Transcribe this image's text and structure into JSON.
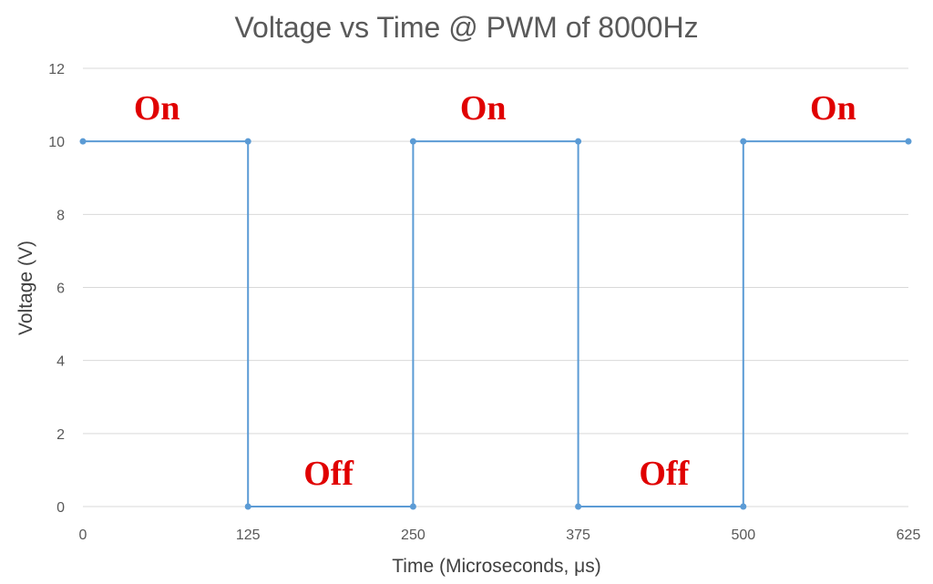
{
  "chart_data": {
    "type": "line",
    "title": "Voltage vs Time @ PWM of 8000Hz",
    "xlabel": "Time (Microseconds, μs)",
    "ylabel": "Voltage (V)",
    "xlim": [
      0,
      625
    ],
    "ylim": [
      0,
      12
    ],
    "x_ticks": [
      "0",
      "125",
      "250",
      "375",
      "500",
      "625"
    ],
    "y_ticks": [
      "0",
      "2",
      "4",
      "6",
      "8",
      "10",
      "12"
    ],
    "grid": true,
    "legend": "none",
    "color": "#5b9bd5",
    "series": [
      {
        "points": [
          [
            0,
            10
          ],
          [
            125,
            10
          ],
          [
            125,
            0
          ],
          [
            250,
            0
          ],
          [
            250,
            10
          ],
          [
            375,
            10
          ],
          [
            375,
            0
          ],
          [
            500,
            0
          ],
          [
            500,
            10
          ],
          [
            625,
            10
          ]
        ]
      }
    ],
    "annotations": [
      {
        "text": "On",
        "x": 56,
        "y": 10.6
      },
      {
        "text": "Off",
        "x": 186,
        "y": 0.6
      },
      {
        "text": "On",
        "x": 303,
        "y": 10.6
      },
      {
        "text": "Off",
        "x": 440,
        "y": 0.6
      },
      {
        "text": "On",
        "x": 568,
        "y": 10.6
      }
    ],
    "annotation_color": "#e00000"
  }
}
